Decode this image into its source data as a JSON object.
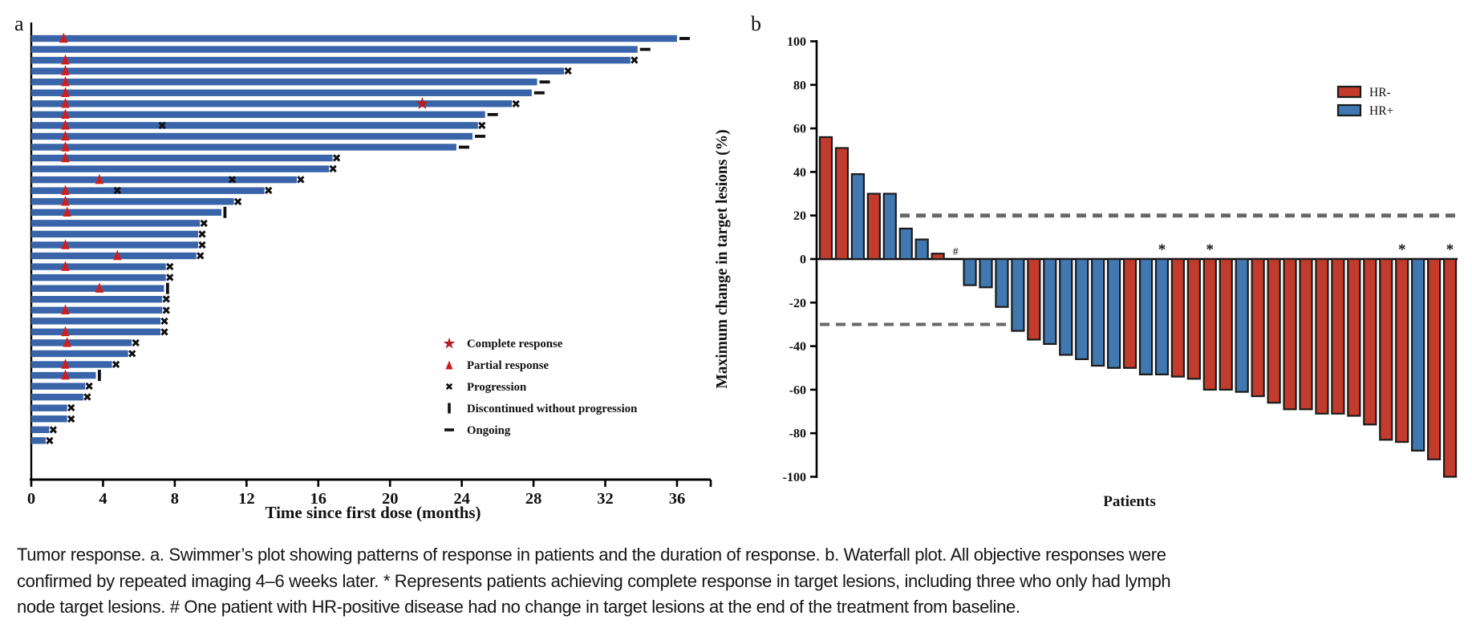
{
  "figure": {
    "panel_a": {
      "label": "a"
    },
    "panel_b": {
      "label": "b"
    },
    "caption": {
      "lines": [
        "Tumor response. a. Swimmer’s plot showing patterns of response in patients and the duration of response. b. Waterfall plot. All objective responses were",
        "confirmed by repeated imaging 4–6 weeks later. * Represents patients achieving complete response in target lesions, including three who only had lymph",
        "node target lesions. # One patient with HR-positive disease had no change in target lesions at the end of the treatment from baseline."
      ]
    }
  },
  "colors": {
    "swimmer_bar": "#3a64a9",
    "hr_neg": "#c23b2b",
    "hr_pos": "#4079b1",
    "bar_stroke": "#1b1b1b",
    "marker_red": "#cc1f1f",
    "star_red": "#b52025",
    "marker_black": "#101010",
    "dashed_line": "#686868",
    "axis": "#000000"
  },
  "chart_data": [
    {
      "type": "bar",
      "subtype": "swimmer",
      "orientation": "horizontal",
      "title": "",
      "xlabel": "Time since first dose (months)",
      "ylabel": "",
      "xticks": [
        0,
        4,
        8,
        12,
        16,
        20,
        24,
        28,
        32,
        36
      ],
      "xlim": [
        0,
        37.9
      ],
      "grid": false,
      "legend_position": "center-right",
      "legend": [
        {
          "symbol": "star",
          "label": "Complete response"
        },
        {
          "symbol": "triangle",
          "label": "Partial response"
        },
        {
          "symbol": "x",
          "label": "Progression"
        },
        {
          "symbol": "vbar",
          "label": "Discontinued without progression"
        },
        {
          "symbol": "dash",
          "label": "Ongoing"
        }
      ],
      "patients": [
        {
          "duration": 36.0,
          "pr": 1.8,
          "cr": null,
          "mid_progression": [],
          "end": "ongoing"
        },
        {
          "duration": 33.8,
          "pr": null,
          "cr": null,
          "mid_progression": [],
          "end": "ongoing"
        },
        {
          "duration": 33.4,
          "pr": 1.9,
          "cr": null,
          "mid_progression": [],
          "end": "progression"
        },
        {
          "duration": 29.7,
          "pr": 1.9,
          "cr": null,
          "mid_progression": [],
          "end": "progression"
        },
        {
          "duration": 28.2,
          "pr": 1.9,
          "cr": null,
          "mid_progression": [],
          "end": "ongoing"
        },
        {
          "duration": 27.9,
          "pr": 1.9,
          "cr": null,
          "mid_progression": [],
          "end": "ongoing"
        },
        {
          "duration": 26.8,
          "pr": 1.9,
          "cr": 21.8,
          "mid_progression": [],
          "end": "progression"
        },
        {
          "duration": 25.3,
          "pr": 1.9,
          "cr": null,
          "mid_progression": [],
          "end": "ongoing"
        },
        {
          "duration": 24.9,
          "pr": 1.9,
          "cr": null,
          "mid_progression": [
            7.3
          ],
          "end": "progression"
        },
        {
          "duration": 24.6,
          "pr": 1.9,
          "cr": null,
          "mid_progression": [],
          "end": "ongoing"
        },
        {
          "duration": 23.7,
          "pr": 1.9,
          "cr": null,
          "mid_progression": [],
          "end": "ongoing"
        },
        {
          "duration": 16.8,
          "pr": 1.9,
          "cr": null,
          "mid_progression": [],
          "end": "progression"
        },
        {
          "duration": 16.6,
          "pr": null,
          "cr": null,
          "mid_progression": [],
          "end": "progression"
        },
        {
          "duration": 14.8,
          "pr": 3.8,
          "cr": null,
          "mid_progression": [
            11.2
          ],
          "end": "progression"
        },
        {
          "duration": 13.0,
          "pr": 1.9,
          "cr": null,
          "mid_progression": [
            4.8
          ],
          "end": "progression"
        },
        {
          "duration": 11.3,
          "pr": 1.9,
          "cr": null,
          "mid_progression": [],
          "end": "progression"
        },
        {
          "duration": 10.6,
          "pr": 2.0,
          "cr": null,
          "mid_progression": [],
          "end": "discontinued"
        },
        {
          "duration": 9.4,
          "pr": null,
          "cr": null,
          "mid_progression": [],
          "end": "progression"
        },
        {
          "duration": 9.3,
          "pr": null,
          "cr": null,
          "mid_progression": [],
          "end": "progression"
        },
        {
          "duration": 9.3,
          "pr": 1.9,
          "cr": null,
          "mid_progression": [],
          "end": "progression"
        },
        {
          "duration": 9.2,
          "pr": 4.8,
          "cr": null,
          "mid_progression": [],
          "end": "progression"
        },
        {
          "duration": 7.5,
          "pr": 1.9,
          "cr": null,
          "mid_progression": [],
          "end": "progression"
        },
        {
          "duration": 7.5,
          "pr": null,
          "cr": null,
          "mid_progression": [],
          "end": "progression"
        },
        {
          "duration": 7.4,
          "pr": 3.8,
          "cr": null,
          "mid_progression": [],
          "end": "discontinued"
        },
        {
          "duration": 7.3,
          "pr": null,
          "cr": null,
          "mid_progression": [],
          "end": "progression"
        },
        {
          "duration": 7.3,
          "pr": 1.9,
          "cr": null,
          "mid_progression": [],
          "end": "progression"
        },
        {
          "duration": 7.2,
          "pr": null,
          "cr": null,
          "mid_progression": [],
          "end": "progression"
        },
        {
          "duration": 7.2,
          "pr": 1.9,
          "cr": null,
          "mid_progression": [],
          "end": "progression"
        },
        {
          "duration": 5.6,
          "pr": 2.0,
          "cr": null,
          "mid_progression": [],
          "end": "progression"
        },
        {
          "duration": 5.4,
          "pr": null,
          "cr": null,
          "mid_progression": [],
          "end": "progression"
        },
        {
          "duration": 4.5,
          "pr": 1.9,
          "cr": null,
          "mid_progression": [],
          "end": "progression"
        },
        {
          "duration": 3.6,
          "pr": 1.9,
          "cr": null,
          "mid_progression": [],
          "end": "discontinued"
        },
        {
          "duration": 3.0,
          "pr": null,
          "cr": null,
          "mid_progression": [],
          "end": "progression"
        },
        {
          "duration": 2.9,
          "pr": null,
          "cr": null,
          "mid_progression": [],
          "end": "progression"
        },
        {
          "duration": 2.0,
          "pr": null,
          "cr": null,
          "mid_progression": [],
          "end": "progression"
        },
        {
          "duration": 2.0,
          "pr": null,
          "cr": null,
          "mid_progression": [],
          "end": "progression"
        },
        {
          "duration": 1.0,
          "pr": null,
          "cr": null,
          "mid_progression": [],
          "end": "progression"
        },
        {
          "duration": 0.8,
          "pr": null,
          "cr": null,
          "mid_progression": [],
          "end": "progression"
        }
      ]
    },
    {
      "type": "bar",
      "subtype": "waterfall",
      "title": "",
      "xlabel": "Patients",
      "ylabel": "Maximum change in target lesions (%)",
      "yticks": [
        100,
        80,
        60,
        40,
        20,
        0,
        -20,
        -40,
        -60,
        -80,
        -100
      ],
      "ylim": [
        -100,
        100
      ],
      "grid": false,
      "reference_lines": [
        20,
        -30
      ],
      "legend_position": "top-right",
      "legend": [
        {
          "name": "HR-",
          "color": "#c23b2b"
        },
        {
          "name": "HR+",
          "color": "#4079b1"
        }
      ],
      "values": [
        {
          "value": 56,
          "group": "HR-",
          "annotation": ""
        },
        {
          "value": 51,
          "group": "HR-",
          "annotation": ""
        },
        {
          "value": 39,
          "group": "HR+",
          "annotation": ""
        },
        {
          "value": 30,
          "group": "HR-",
          "annotation": ""
        },
        {
          "value": 30,
          "group": "HR+",
          "annotation": ""
        },
        {
          "value": 14,
          "group": "HR+",
          "annotation": ""
        },
        {
          "value": 9,
          "group": "HR+",
          "annotation": ""
        },
        {
          "value": 2.5,
          "group": "HR-",
          "annotation": ""
        },
        {
          "value": 0,
          "group": "HR+",
          "annotation": "#"
        },
        {
          "value": -12,
          "group": "HR+",
          "annotation": ""
        },
        {
          "value": -13,
          "group": "HR+",
          "annotation": ""
        },
        {
          "value": -22,
          "group": "HR+",
          "annotation": ""
        },
        {
          "value": -33,
          "group": "HR+",
          "annotation": ""
        },
        {
          "value": -37,
          "group": "HR-",
          "annotation": ""
        },
        {
          "value": -39,
          "group": "HR+",
          "annotation": ""
        },
        {
          "value": -44,
          "group": "HR+",
          "annotation": ""
        },
        {
          "value": -46,
          "group": "HR+",
          "annotation": ""
        },
        {
          "value": -49,
          "group": "HR+",
          "annotation": ""
        },
        {
          "value": -50,
          "group": "HR+",
          "annotation": ""
        },
        {
          "value": -50,
          "group": "HR-",
          "annotation": ""
        },
        {
          "value": -53,
          "group": "HR+",
          "annotation": ""
        },
        {
          "value": -53,
          "group": "HR+",
          "annotation": "*"
        },
        {
          "value": -54,
          "group": "HR-",
          "annotation": ""
        },
        {
          "value": -55,
          "group": "HR-",
          "annotation": ""
        },
        {
          "value": -60,
          "group": "HR-",
          "annotation": "*"
        },
        {
          "value": -60,
          "group": "HR-",
          "annotation": ""
        },
        {
          "value": -61,
          "group": "HR+",
          "annotation": ""
        },
        {
          "value": -63,
          "group": "HR-",
          "annotation": ""
        },
        {
          "value": -66,
          "group": "HR-",
          "annotation": ""
        },
        {
          "value": -69,
          "group": "HR-",
          "annotation": ""
        },
        {
          "value": -69,
          "group": "HR-",
          "annotation": ""
        },
        {
          "value": -71,
          "group": "HR-",
          "annotation": ""
        },
        {
          "value": -71,
          "group": "HR-",
          "annotation": ""
        },
        {
          "value": -72,
          "group": "HR-",
          "annotation": ""
        },
        {
          "value": -76,
          "group": "HR-",
          "annotation": ""
        },
        {
          "value": -83,
          "group": "HR-",
          "annotation": ""
        },
        {
          "value": -84,
          "group": "HR-",
          "annotation": "*"
        },
        {
          "value": -88,
          "group": "HR+",
          "annotation": ""
        },
        {
          "value": -92,
          "group": "HR-",
          "annotation": ""
        },
        {
          "value": -100,
          "group": "HR-",
          "annotation": "*"
        }
      ]
    }
  ]
}
